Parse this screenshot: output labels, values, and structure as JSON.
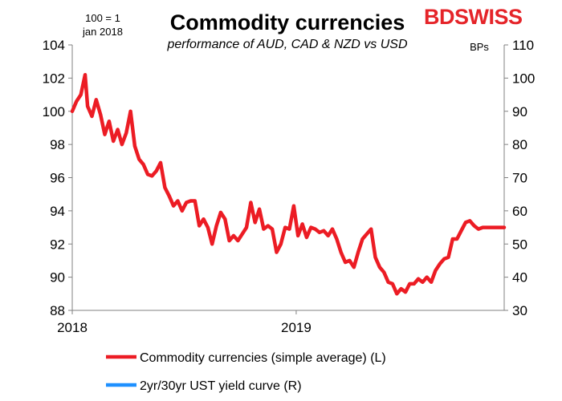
{
  "header": {
    "title": "Commodity currencies",
    "subtitle": "performance of AUD, CAD & NZD vs USD",
    "left_note_line1": "100 = 1",
    "left_note_line2": "jan 2018",
    "right_unit": "BPs",
    "logo_text": "BDSWISS",
    "logo_color": "#e52429"
  },
  "chart_data": {
    "type": "line",
    "x_ticks": [
      "2018",
      "2019"
    ],
    "y_left": {
      "min": 88,
      "max": 104,
      "ticks": [
        88,
        90,
        92,
        94,
        96,
        98,
        100,
        102,
        104
      ]
    },
    "y_right": {
      "min": 30,
      "max": 110,
      "ticks": [
        30,
        40,
        50,
        60,
        70,
        80,
        90,
        100,
        110
      ]
    },
    "series": [
      {
        "name": "Commodity currencies (simple average) (L)",
        "axis": "left",
        "color": "#ec1c24",
        "x": [
          "2018-01-01",
          "2018-01-08",
          "2018-01-15",
          "2018-01-22",
          "2018-01-26",
          "2018-02-02",
          "2018-02-09",
          "2018-02-16",
          "2018-02-23",
          "2018-03-02",
          "2018-03-09",
          "2018-03-16",
          "2018-03-23",
          "2018-03-30",
          "2018-04-06",
          "2018-04-13",
          "2018-04-20",
          "2018-04-27",
          "2018-05-04",
          "2018-05-11",
          "2018-05-18",
          "2018-05-25",
          "2018-06-01",
          "2018-06-08",
          "2018-06-15",
          "2018-06-22",
          "2018-06-29",
          "2018-07-06",
          "2018-07-13",
          "2018-07-20",
          "2018-07-27",
          "2018-08-03",
          "2018-08-10",
          "2018-08-17",
          "2018-08-24",
          "2018-08-31",
          "2018-09-07",
          "2018-09-14",
          "2018-09-21",
          "2018-09-28",
          "2018-10-05",
          "2018-10-12",
          "2018-10-19",
          "2018-10-26",
          "2018-11-02",
          "2018-11-09",
          "2018-11-16",
          "2018-11-23",
          "2018-11-30",
          "2018-12-07",
          "2018-12-14",
          "2018-12-21",
          "2018-12-28",
          "2019-01-04",
          "2019-01-11",
          "2019-01-18",
          "2019-01-25",
          "2019-02-01",
          "2019-02-08",
          "2019-02-15",
          "2019-02-22",
          "2019-03-01",
          "2019-03-08",
          "2019-03-15",
          "2019-03-22",
          "2019-03-29",
          "2019-04-05",
          "2019-04-12",
          "2019-04-19",
          "2019-04-26",
          "2019-05-03",
          "2019-05-10",
          "2019-05-17",
          "2019-05-24",
          "2019-05-31",
          "2019-06-07",
          "2019-06-14",
          "2019-06-21",
          "2019-06-28",
          "2019-07-05",
          "2019-07-12",
          "2019-07-19",
          "2019-07-26",
          "2019-08-02",
          "2019-08-09",
          "2019-08-16",
          "2019-08-23",
          "2019-08-30",
          "2019-09-06",
          "2019-09-13",
          "2019-09-20",
          "2019-09-27",
          "2019-10-04",
          "2019-10-11",
          "2019-10-18",
          "2019-10-25",
          "2019-11-01",
          "2019-11-08",
          "2019-11-15",
          "2019-11-22",
          "2019-11-29",
          "2019-12-06"
        ],
        "values": [
          100.0,
          100.6,
          101.0,
          102.2,
          100.3,
          99.7,
          100.7,
          99.8,
          98.6,
          99.4,
          98.2,
          98.9,
          98.0,
          98.7,
          100.0,
          97.9,
          97.1,
          96.8,
          96.2,
          96.1,
          96.4,
          96.9,
          95.4,
          94.9,
          94.3,
          94.6,
          94.0,
          94.5,
          94.6,
          94.6,
          93.1,
          93.5,
          93.0,
          92.0,
          93.1,
          93.9,
          93.5,
          92.2,
          92.5,
          92.2,
          92.6,
          93.0,
          94.5,
          93.3,
          94.1,
          92.9,
          93.1,
          92.9,
          91.5,
          92.0,
          93.0,
          92.9,
          94.3,
          92.5,
          93.2,
          92.4,
          93.0,
          92.9,
          92.7,
          92.8,
          92.5,
          92.9,
          92.3,
          91.5,
          90.9,
          91.0,
          90.6,
          91.5,
          92.3,
          92.6,
          92.9,
          91.2,
          90.6,
          90.3,
          89.7,
          89.6,
          89.0,
          89.3,
          89.1,
          89.6,
          89.6,
          89.9,
          89.7,
          90.0,
          89.7,
          90.4,
          90.8,
          91.1,
          91.2,
          92.3,
          92.3,
          92.8,
          93.3,
          93.4,
          93.1,
          92.9,
          93.0,
          93.0,
          93.0,
          93.0,
          93.0,
          93.0
        ],
        "note": ""
      },
      {
        "name": "2yr/30yr UST yield curve (R)",
        "axis": "right",
        "color": "#1e90ff",
        "x": [],
        "values": []
      }
    ]
  }
}
